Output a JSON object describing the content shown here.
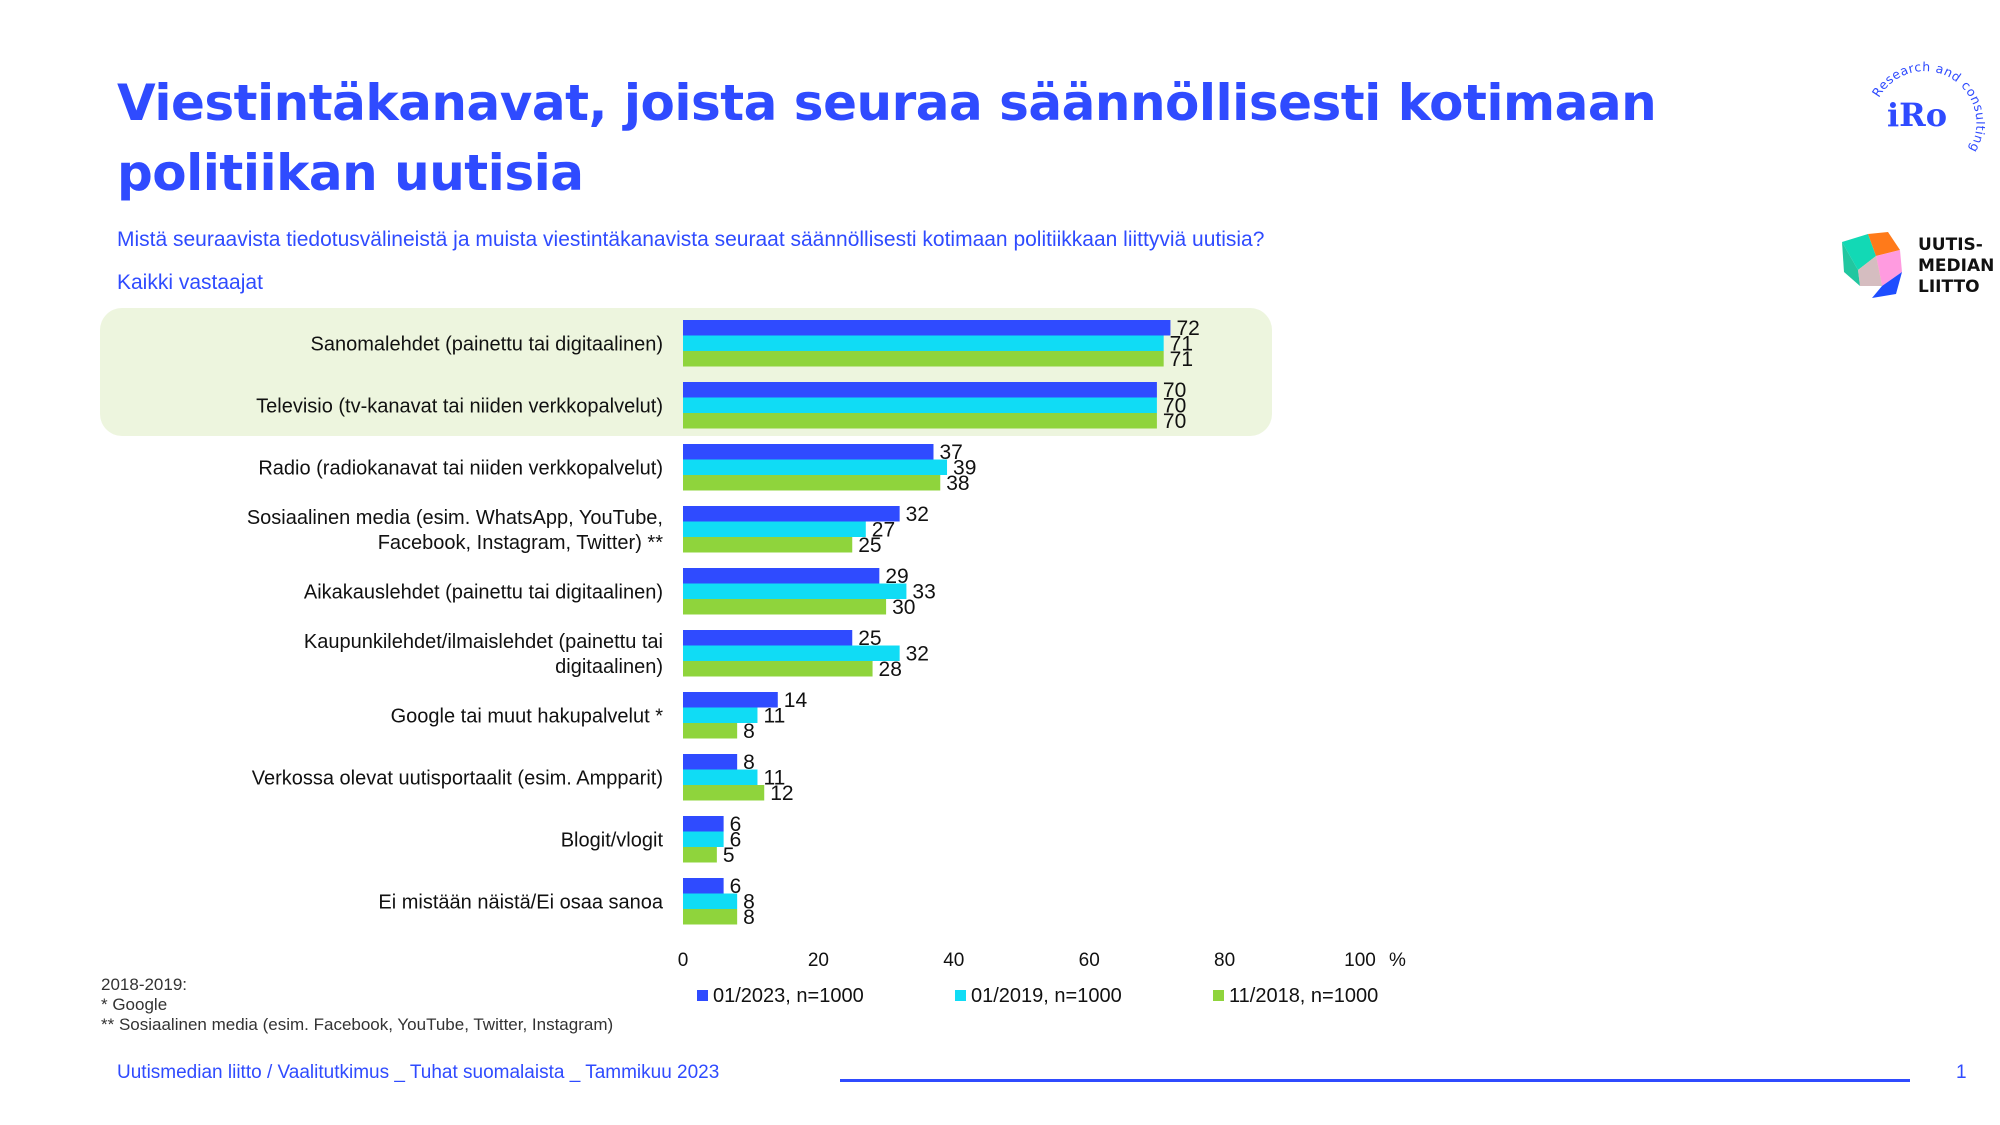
{
  "header": {
    "title": "Viestintäkanavat, joista seuraa säännöllisesti kotimaan politiikan uutisia",
    "question": "Mistä seuraavista tiedotusvälineistä ja muista viestintäkanavista seuraat säännöllisesti kotimaan politiikkaan liittyviä uutisia?",
    "base": "Kaikki vastaajat"
  },
  "logos": {
    "iro_text": "iRo",
    "iro_tagline": "Research and consulting",
    "um_line1": "UUTIS-",
    "um_line2": "MEDIAN",
    "um_line3": "LIITTO"
  },
  "chart_data": {
    "type": "bar",
    "orientation": "horizontal",
    "categories": [
      [
        "Sanomalehdet (painettu tai digitaalinen)"
      ],
      [
        "Televisio (tv-kanavat tai niiden verkkopalvelut)"
      ],
      [
        "Radio (radiokanavat tai niiden verkkopalvelut)"
      ],
      [
        "Sosiaalinen media (esim. WhatsApp, YouTube,",
        "Facebook, Instagram, Twitter) **"
      ],
      [
        "Aikakauslehdet (painettu tai digitaalinen)"
      ],
      [
        "Kaupunkilehdet/ilmaislehdet (painettu tai",
        "digitaalinen)"
      ],
      [
        "Google tai muut hakupalvelut *"
      ],
      [
        "Verkossa olevat uutisportaalit (esim. Ampparit)"
      ],
      [
        "Blogit/vlogit"
      ],
      [
        "Ei mistään näistä/Ei osaa sanoa"
      ]
    ],
    "series": [
      {
        "name": "01/2023, n=1000",
        "color": "#2f4bff",
        "values": [
          72,
          70,
          37,
          32,
          29,
          25,
          14,
          8,
          6,
          6
        ]
      },
      {
        "name": "01/2019, n=1000",
        "color": "#10dcf5",
        "values": [
          71,
          70,
          39,
          27,
          33,
          32,
          11,
          11,
          6,
          8
        ]
      },
      {
        "name": "11/2018, n=1000",
        "color": "#8fd43c",
        "values": [
          71,
          70,
          38,
          25,
          30,
          28,
          8,
          12,
          5,
          8
        ]
      }
    ],
    "xlim": [
      0,
      100
    ],
    "xticks": [
      "0",
      "20",
      "40",
      "60",
      "80",
      "100"
    ],
    "xunit": "%",
    "highlighted_categories": [
      0,
      1
    ],
    "legend_position": "bottom"
  },
  "footnotes": {
    "line1": "2018-2019:",
    "line2": "* Google",
    "line3": "** Sosiaalinen media (esim. Facebook, YouTube, Twitter, Instagram)"
  },
  "footer": {
    "source": "Uutismedian liitto / Vaalitutkimus _ Tuhat suomalaista _ Tammikuu 2023",
    "page": "1"
  }
}
